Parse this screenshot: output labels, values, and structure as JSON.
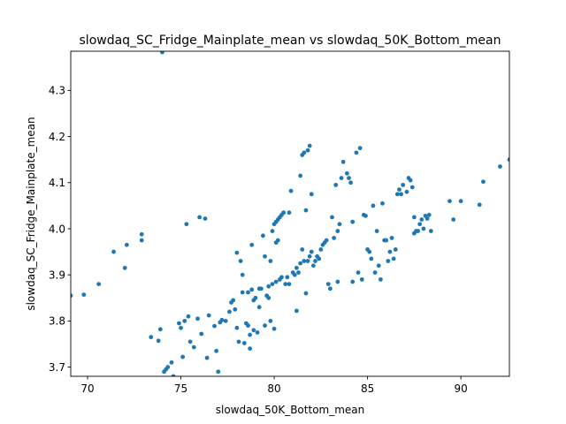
{
  "chart_data": {
    "type": "scatter",
    "title": "slowdaq_SC_Fridge_Mainplate_mean vs slowdaq_50K_Bottom_mean",
    "xlabel": "slowdaq_50K_Bottom_mean",
    "ylabel": "slowdaq_SC_Fridge_Mainplate_mean",
    "xlim": [
      69.1,
      92.6
    ],
    "ylim": [
      3.68,
      4.385
    ],
    "xticks": [
      70,
      75,
      80,
      85,
      90
    ],
    "yticks": [
      3.7,
      3.8,
      3.9,
      4.0,
      4.1,
      4.2,
      4.3
    ],
    "xtick_labels": [
      "70",
      "75",
      "80",
      "85",
      "90"
    ],
    "ytick_labels": [
      "3.7",
      "3.8",
      "3.9",
      "4.0",
      "4.1",
      "4.2",
      "4.3"
    ],
    "grid": false,
    "marker_color": "#1f77b4",
    "points": [
      [
        74.0,
        4.383
      ],
      [
        69.1,
        3.855
      ],
      [
        69.8,
        3.857
      ],
      [
        70.6,
        3.88
      ],
      [
        71.4,
        3.95
      ],
      [
        72.1,
        3.965
      ],
      [
        72.0,
        3.915
      ],
      [
        72.9,
        3.988
      ],
      [
        72.9,
        3.975
      ],
      [
        73.4,
        3.765
      ],
      [
        73.8,
        3.757
      ],
      [
        73.9,
        3.782
      ],
      [
        74.1,
        3.69
      ],
      [
        74.2,
        3.695
      ],
      [
        74.3,
        3.7
      ],
      [
        74.5,
        3.71
      ],
      [
        74.6,
        3.68
      ],
      [
        74.9,
        3.795
      ],
      [
        75.0,
        3.785
      ],
      [
        75.1,
        3.722
      ],
      [
        75.2,
        3.8
      ],
      [
        75.3,
        4.01
      ],
      [
        75.4,
        3.81
      ],
      [
        75.5,
        3.755
      ],
      [
        75.7,
        3.743
      ],
      [
        75.9,
        3.805
      ],
      [
        76.0,
        4.025
      ],
      [
        76.1,
        3.772
      ],
      [
        76.3,
        4.022
      ],
      [
        76.4,
        3.72
      ],
      [
        76.5,
        3.812
      ],
      [
        76.8,
        3.789
      ],
      [
        76.9,
        3.735
      ],
      [
        77.0,
        3.69
      ],
      [
        77.1,
        3.797
      ],
      [
        77.2,
        3.802
      ],
      [
        77.4,
        3.8
      ],
      [
        77.6,
        3.82
      ],
      [
        77.7,
        3.84
      ],
      [
        77.8,
        3.845
      ],
      [
        77.9,
        3.825
      ],
      [
        78.0,
        3.785
      ],
      [
        78.0,
        3.948
      ],
      [
        78.1,
        3.755
      ],
      [
        78.2,
        3.93
      ],
      [
        78.3,
        3.9
      ],
      [
        78.3,
        3.862
      ],
      [
        78.4,
        3.752
      ],
      [
        78.5,
        3.795
      ],
      [
        78.6,
        3.79
      ],
      [
        78.6,
        3.862
      ],
      [
        78.7,
        3.77
      ],
      [
        78.7,
        3.74
      ],
      [
        78.8,
        3.868
      ],
      [
        78.8,
        3.965
      ],
      [
        78.9,
        3.845
      ],
      [
        78.9,
        3.78
      ],
      [
        79.0,
        3.85
      ],
      [
        79.1,
        3.775
      ],
      [
        79.2,
        3.87
      ],
      [
        79.2,
        3.83
      ],
      [
        79.3,
        3.87
      ],
      [
        79.4,
        3.985
      ],
      [
        79.5,
        3.79
      ],
      [
        79.5,
        3.94
      ],
      [
        79.6,
        3.855
      ],
      [
        79.7,
        3.85
      ],
      [
        79.7,
        3.875
      ],
      [
        79.8,
        3.8
      ],
      [
        79.8,
        3.93
      ],
      [
        79.9,
        3.995
      ],
      [
        79.9,
        3.88
      ],
      [
        80.0,
        4.01
      ],
      [
        80.0,
        3.783
      ],
      [
        80.1,
        3.97
      ],
      [
        80.1,
        3.885
      ],
      [
        80.1,
        4.015
      ],
      [
        80.2,
        4.02
      ],
      [
        80.2,
        3.975
      ],
      [
        80.3,
        4.025
      ],
      [
        80.3,
        3.89
      ],
      [
        80.4,
        4.03
      ],
      [
        80.4,
        3.895
      ],
      [
        80.5,
        4.035
      ],
      [
        80.6,
        3.88
      ],
      [
        80.7,
        3.895
      ],
      [
        80.8,
        3.88
      ],
      [
        80.8,
        4.035
      ],
      [
        80.9,
        4.082
      ],
      [
        81.0,
        3.905
      ],
      [
        81.1,
        3.9
      ],
      [
        81.2,
        3.915
      ],
      [
        81.2,
        3.822
      ],
      [
        81.3,
        3.905
      ],
      [
        81.4,
        4.115
      ],
      [
        81.4,
        3.925
      ],
      [
        81.5,
        4.16
      ],
      [
        81.5,
        3.955
      ],
      [
        81.6,
        4.165
      ],
      [
        81.6,
        3.93
      ],
      [
        81.7,
        4.04
      ],
      [
        81.7,
        3.86
      ],
      [
        81.8,
        4.17
      ],
      [
        81.8,
        3.93
      ],
      [
        81.9,
        4.18
      ],
      [
        81.9,
        3.94
      ],
      [
        82.0,
        4.075
      ],
      [
        82.0,
        3.95
      ],
      [
        82.1,
        3.92
      ],
      [
        82.2,
        3.93
      ],
      [
        82.3,
        3.94
      ],
      [
        82.4,
        3.935
      ],
      [
        82.5,
        3.955
      ],
      [
        82.6,
        3.965
      ],
      [
        82.7,
        3.97
      ],
      [
        82.8,
        3.975
      ],
      [
        82.9,
        3.88
      ],
      [
        83.0,
        3.87
      ],
      [
        83.1,
        4.025
      ],
      [
        83.2,
        3.98
      ],
      [
        83.3,
        4.095
      ],
      [
        83.4,
        3.995
      ],
      [
        83.4,
        3.885
      ],
      [
        83.5,
        4.01
      ],
      [
        83.6,
        4.11
      ],
      [
        83.7,
        4.145
      ],
      [
        83.9,
        4.12
      ],
      [
        84.0,
        4.11
      ],
      [
        84.1,
        4.1
      ],
      [
        84.2,
        3.885
      ],
      [
        84.2,
        4.015
      ],
      [
        84.4,
        4.165
      ],
      [
        84.5,
        3.905
      ],
      [
        84.6,
        4.175
      ],
      [
        84.7,
        3.89
      ],
      [
        84.8,
        4.03
      ],
      [
        84.9,
        4.028
      ],
      [
        85.0,
        3.955
      ],
      [
        85.1,
        3.95
      ],
      [
        85.2,
        3.935
      ],
      [
        85.3,
        4.05
      ],
      [
        85.4,
        3.905
      ],
      [
        85.5,
        3.995
      ],
      [
        85.6,
        3.92
      ],
      [
        85.7,
        3.89
      ],
      [
        85.8,
        4.055
      ],
      [
        85.9,
        3.975
      ],
      [
        86.0,
        3.975
      ],
      [
        86.1,
        3.93
      ],
      [
        86.2,
        3.95
      ],
      [
        86.3,
        3.98
      ],
      [
        86.4,
        3.935
      ],
      [
        86.5,
        3.955
      ],
      [
        86.6,
        4.075
      ],
      [
        86.7,
        4.085
      ],
      [
        86.8,
        4.075
      ],
      [
        86.9,
        4.095
      ],
      [
        87.1,
        4.08
      ],
      [
        87.2,
        4.11
      ],
      [
        87.3,
        4.105
      ],
      [
        87.4,
        4.09
      ],
      [
        87.5,
        3.99
      ],
      [
        87.5,
        4.025
      ],
      [
        87.6,
        3.995
      ],
      [
        87.7,
        3.995
      ],
      [
        87.8,
        4.01
      ],
      [
        87.9,
        4.02
      ],
      [
        88.0,
        4.0
      ],
      [
        88.1,
        4.028
      ],
      [
        88.2,
        4.022
      ],
      [
        88.3,
        4.03
      ],
      [
        88.4,
        3.995
      ],
      [
        89.4,
        4.06
      ],
      [
        89.6,
        4.02
      ],
      [
        90.0,
        4.06
      ],
      [
        91.0,
        4.052
      ],
      [
        91.2,
        4.102
      ],
      [
        92.1,
        4.135
      ],
      [
        92.6,
        4.15
      ]
    ]
  }
}
